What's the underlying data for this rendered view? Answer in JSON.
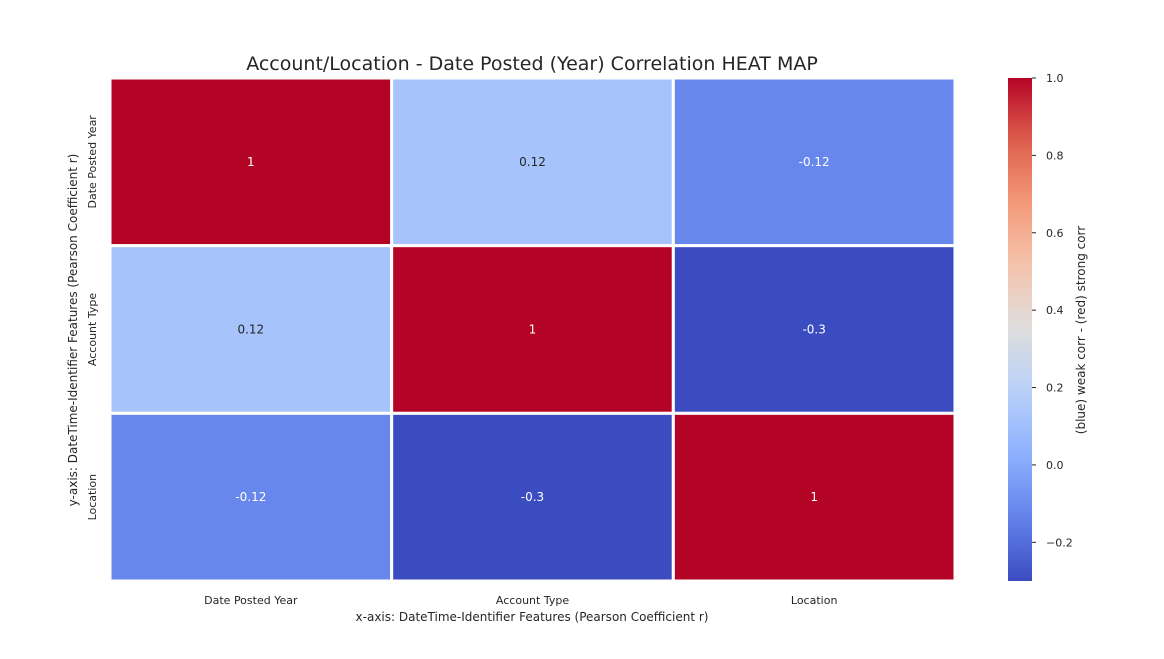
{
  "chart_data": {
    "type": "heatmap",
    "title": "Account/Location - Date Posted (Year) Correlation HEAT MAP",
    "xlabel": "x-axis: DateTime-Identifier Features (Pearson Coefficient r)",
    "ylabel": "y-axis: DateTime-Identifier Features (Pearson Coefficient r)",
    "x_categories": [
      "Date Posted Year",
      "Account Type",
      "Location"
    ],
    "y_categories": [
      "Date Posted Year",
      "Account Type",
      "Location"
    ],
    "values": [
      [
        1,
        0.12,
        -0.12
      ],
      [
        0.12,
        1,
        -0.3
      ],
      [
        -0.12,
        -0.3,
        1
      ]
    ],
    "annotations": [
      [
        "1",
        "0.12",
        "-0.12"
      ],
      [
        "0.12",
        "1",
        "-0.3"
      ],
      [
        "-0.12",
        "-0.3",
        "1"
      ]
    ],
    "colormap": "coolwarm",
    "vmin": -0.3,
    "vmax": 1.0,
    "colorbar": {
      "label": "(blue) weak corr - (red) strong corr",
      "ticks": [
        -0.2,
        0.0,
        0.2,
        0.4,
        0.6,
        0.8,
        1.0
      ],
      "tick_labels": [
        "−0.2",
        "0.0",
        "0.2",
        "0.4",
        "0.6",
        "0.8",
        "1.0"
      ]
    },
    "grid": false,
    "cell_border_color": "#ffffff"
  }
}
